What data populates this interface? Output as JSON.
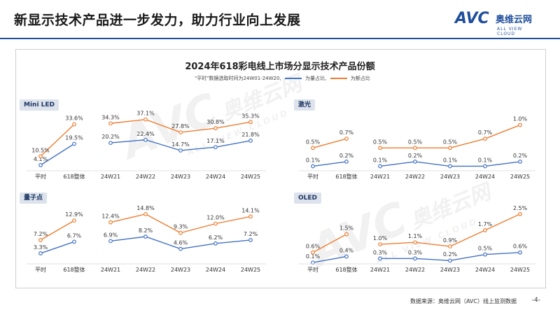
{
  "header": {
    "title": "新显示技术产品进一步发力，助力行业向上发展"
  },
  "logo": {
    "main": "AVC",
    "cn": "奥维云网",
    "sub": "ALL VIEW CLOUD"
  },
  "watermark": {
    "main": "AVC",
    "cn": "奥维云网",
    "sub": "ALL VIEW CLOUD"
  },
  "chart_title": "2024年618彩电线上市场分显示技术产品份额",
  "legend": {
    "note": "\"平时\"数据选取时间为24W01-24W20,",
    "volume_label": "为量占比,",
    "value_label": "为额占比"
  },
  "colors": {
    "volume": "#4472c4",
    "value": "#ed7d31"
  },
  "footer": {
    "source": "数据来源：奥维云网（AVC）线上监测数据",
    "page": "-4-"
  },
  "chart_data": [
    {
      "type": "line",
      "panel": "Mini LED",
      "categories": [
        "平时",
        "618整体",
        "24W21",
        "24W22",
        "24W23",
        "24W24",
        "24W25"
      ],
      "series": [
        {
          "name": "量占比",
          "values": [
            4.1,
            19.5,
            20.2,
            22.4,
            14.7,
            17.1,
            21.8
          ],
          "labels": [
            "4.1%",
            "19.5%",
            "20.2%",
            "22.4%",
            "14.7%",
            "17.1%",
            "21.8%"
          ]
        },
        {
          "name": "额占比",
          "values": [
            10.5,
            33.6,
            34.3,
            37.1,
            27.8,
            30.8,
            35.3
          ],
          "labels": [
            "10.5%",
            "33.6%",
            "34.3%",
            "37.1%",
            "27.8%",
            "30.8%",
            "35.3%"
          ]
        }
      ],
      "ylim": [
        0,
        40
      ]
    },
    {
      "type": "line",
      "panel": "激光",
      "categories": [
        "平时",
        "618整体",
        "24W21",
        "24W22",
        "24W23",
        "24W24",
        "24W25"
      ],
      "series": [
        {
          "name": "量占比",
          "values": [
            0.1,
            0.2,
            0.1,
            0.2,
            0.1,
            0.1,
            0.2
          ],
          "labels": [
            "0.1%",
            "0.2%",
            "0.1%",
            "0.2%",
            "0.1%",
            "0.1%",
            "0.2%"
          ]
        },
        {
          "name": "额占比",
          "values": [
            0.5,
            0.7,
            0.5,
            0.5,
            0.5,
            0.7,
            1.0
          ],
          "labels": [
            "0.5%",
            "0.7%",
            "0.5%",
            "0.5%",
            "0.5%",
            "0.7%",
            "1.0%"
          ]
        }
      ],
      "ylim": [
        0,
        1.1
      ]
    },
    {
      "type": "line",
      "panel": "量子点",
      "categories": [
        "平时",
        "618整体",
        "24W21",
        "24W22",
        "24W23",
        "24W24",
        "24W25"
      ],
      "series": [
        {
          "name": "量占比",
          "values": [
            3.3,
            6.7,
            6.9,
            8.2,
            4.6,
            6.2,
            7.2
          ],
          "labels": [
            "3.3%",
            "6.7%",
            "6.9%",
            "8.2%",
            "4.6%",
            "6.2%",
            "7.2%"
          ]
        },
        {
          "name": "额占比",
          "values": [
            7.2,
            12.9,
            12.4,
            14.8,
            9.3,
            12.0,
            14.1
          ],
          "labels": [
            "7.2%",
            "12.9%",
            "12.4%",
            "14.8%",
            "9.3%",
            "12.0%",
            "14.1%"
          ]
        }
      ],
      "ylim": [
        0,
        16
      ]
    },
    {
      "type": "line",
      "panel": "OLED",
      "categories": [
        "平时",
        "618整体",
        "24W21",
        "24W22",
        "24W23",
        "24W24",
        "24W25"
      ],
      "series": [
        {
          "name": "量占比",
          "values": [
            0.1,
            0.4,
            0.3,
            0.3,
            0.2,
            0.5,
            0.6
          ],
          "labels": [
            "0.1%",
            "0.4%",
            "0.3%",
            "0.3%",
            "0.2%",
            "0.5%",
            "0.6%"
          ]
        },
        {
          "name": "额占比",
          "values": [
            0.6,
            1.5,
            1.0,
            1.1,
            0.9,
            1.7,
            2.5
          ],
          "labels": [
            "0.6%",
            "1.5%",
            "1.0%",
            "1.1%",
            "0.9%",
            "1.7%",
            "2.5%"
          ]
        }
      ],
      "ylim": [
        0,
        2.7
      ]
    }
  ]
}
